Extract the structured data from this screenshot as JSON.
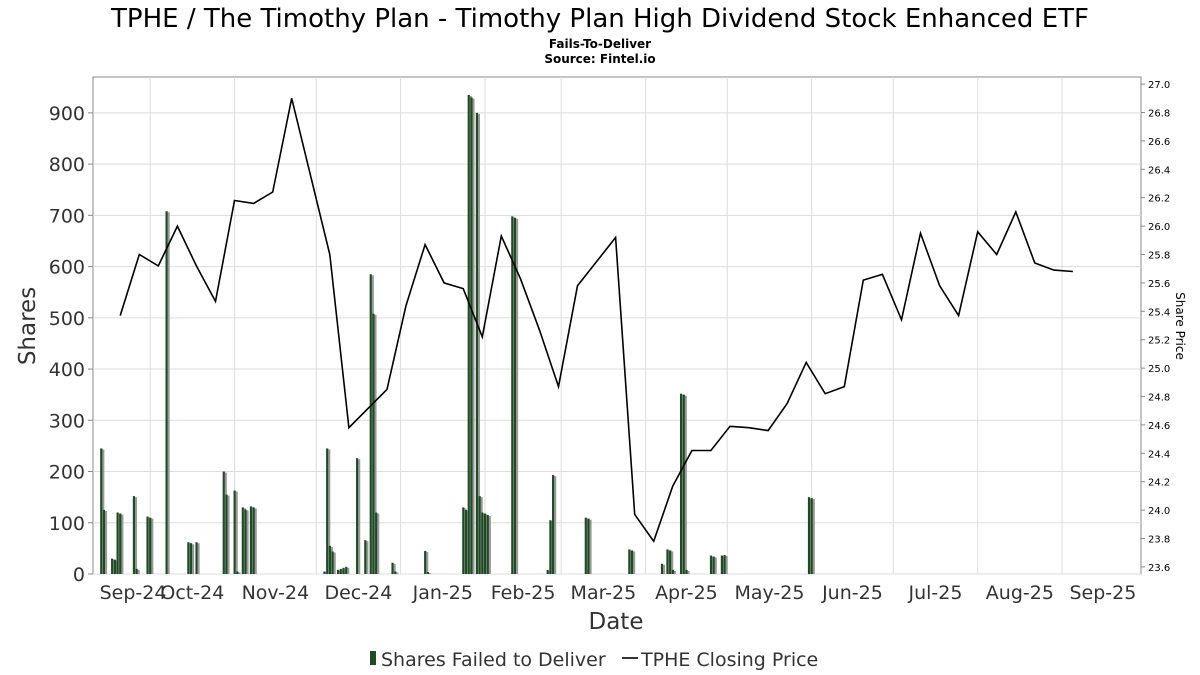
{
  "chart_data": {
    "type": "bar",
    "title": "TPHE / The Timothy Plan - Timothy Plan High Dividend Stock Enhanced ETF",
    "subtitle": "Fails-To-Deliver",
    "source": "Source: Fintel.io",
    "xlabel": "Date",
    "ylabel": "Shares",
    "ylabel_right": "Share Price",
    "ylim": [
      0,
      970
    ],
    "ylim_right": [
      23.55,
      27.05
    ],
    "xlim": [
      "2024-09-10",
      "2025-09-30"
    ],
    "yticks": [
      0,
      100,
      200,
      300,
      400,
      500,
      600,
      700,
      800,
      900
    ],
    "yticks_right": [
      "23.6",
      "23.8",
      "24.0",
      "24.2",
      "24.4",
      "24.6",
      "24.8",
      "25.0",
      "25.2",
      "25.4",
      "25.6",
      "25.8",
      "26.0",
      "26.2",
      "26.4",
      "26.6",
      "26.8",
      "27.0"
    ],
    "xticks": [
      {
        "date": "2024-09-01",
        "label": "Sep-24"
      },
      {
        "date": "2024-10-01",
        "label": "Oct-24"
      },
      {
        "date": "2024-11-01",
        "label": "Nov-24"
      },
      {
        "date": "2024-12-01",
        "label": "Dec-24"
      },
      {
        "date": "2025-01-01",
        "label": "Jan-25"
      },
      {
        "date": "2025-02-01",
        "label": "Feb-25"
      },
      {
        "date": "2025-03-01",
        "label": "Mar-25"
      },
      {
        "date": "2025-04-01",
        "label": "Apr-25"
      },
      {
        "date": "2025-05-01",
        "label": "May-25"
      },
      {
        "date": "2025-06-01",
        "label": "Jun-25"
      },
      {
        "date": "2025-07-01",
        "label": "Jul-25"
      },
      {
        "date": "2025-08-01",
        "label": "Aug-25"
      },
      {
        "date": "2025-09-01",
        "label": "Sep-25"
      }
    ],
    "grid": true,
    "legend_placement": "bottom",
    "colors": {
      "bars": "#1e4a24",
      "bar_shadow": "#999999",
      "line": "#000000",
      "grid": "#dddddd"
    },
    "series": [
      {
        "name": "Shares Failed to Deliver",
        "type": "bar",
        "points": [
          {
            "x": "2024-09-13",
            "y": 245
          },
          {
            "x": "2024-09-14",
            "y": 125
          },
          {
            "x": "2024-09-17",
            "y": 30
          },
          {
            "x": "2024-09-18",
            "y": 28
          },
          {
            "x": "2024-09-19",
            "y": 120
          },
          {
            "x": "2024-09-20",
            "y": 118
          },
          {
            "x": "2024-09-25",
            "y": 152
          },
          {
            "x": "2024-09-26",
            "y": 10
          },
          {
            "x": "2024-09-30",
            "y": 112
          },
          {
            "x": "2024-10-01",
            "y": 110
          },
          {
            "x": "2024-10-07",
            "y": 708
          },
          {
            "x": "2024-10-15",
            "y": 62
          },
          {
            "x": "2024-10-16",
            "y": 60
          },
          {
            "x": "2024-10-18",
            "y": 62
          },
          {
            "x": "2024-10-28",
            "y": 200
          },
          {
            "x": "2024-10-29",
            "y": 155
          },
          {
            "x": "2024-11-01",
            "y": 163
          },
          {
            "x": "2024-11-02",
            "y": 5
          },
          {
            "x": "2024-11-04",
            "y": 130
          },
          {
            "x": "2024-11-05",
            "y": 126
          },
          {
            "x": "2024-11-07",
            "y": 132
          },
          {
            "x": "2024-11-08",
            "y": 130
          },
          {
            "x": "2024-12-04",
            "y": 5
          },
          {
            "x": "2024-12-05",
            "y": 245
          },
          {
            "x": "2024-12-06",
            "y": 55
          },
          {
            "x": "2024-12-07",
            "y": 44
          },
          {
            "x": "2024-12-09",
            "y": 8
          },
          {
            "x": "2024-12-10",
            "y": 10
          },
          {
            "x": "2024-12-11",
            "y": 12
          },
          {
            "x": "2024-12-12",
            "y": 14
          },
          {
            "x": "2024-12-16",
            "y": 226
          },
          {
            "x": "2024-12-19",
            "y": 66
          },
          {
            "x": "2024-12-21",
            "y": 585
          },
          {
            "x": "2024-12-22",
            "y": 508
          },
          {
            "x": "2024-12-23",
            "y": 120
          },
          {
            "x": "2024-12-29",
            "y": 22
          },
          {
            "x": "2024-12-30",
            "y": 5
          },
          {
            "x": "2025-01-10",
            "y": 45
          },
          {
            "x": "2025-01-11",
            "y": 4
          },
          {
            "x": "2025-01-24",
            "y": 130
          },
          {
            "x": "2025-01-25",
            "y": 125
          },
          {
            "x": "2025-01-26",
            "y": 935
          },
          {
            "x": "2025-01-27",
            "y": 930
          },
          {
            "x": "2025-01-29",
            "y": 900
          },
          {
            "x": "2025-01-30",
            "y": 152
          },
          {
            "x": "2025-01-31",
            "y": 120
          },
          {
            "x": "2025-02-01",
            "y": 118
          },
          {
            "x": "2025-02-02",
            "y": 115
          },
          {
            "x": "2025-02-11",
            "y": 698
          },
          {
            "x": "2025-02-12",
            "y": 695
          },
          {
            "x": "2025-02-24",
            "y": 8
          },
          {
            "x": "2025-02-25",
            "y": 105
          },
          {
            "x": "2025-02-26",
            "y": 193
          },
          {
            "x": "2025-03-10",
            "y": 110
          },
          {
            "x": "2025-03-11",
            "y": 108
          },
          {
            "x": "2025-03-26",
            "y": 48
          },
          {
            "x": "2025-03-27",
            "y": 46
          },
          {
            "x": "2025-04-07",
            "y": 20
          },
          {
            "x": "2025-04-09",
            "y": 48
          },
          {
            "x": "2025-04-10",
            "y": 46
          },
          {
            "x": "2025-04-11",
            "y": 8
          },
          {
            "x": "2025-04-14",
            "y": 352
          },
          {
            "x": "2025-04-15",
            "y": 350
          },
          {
            "x": "2025-04-16",
            "y": 8
          },
          {
            "x": "2025-04-25",
            "y": 36
          },
          {
            "x": "2025-04-26",
            "y": 34
          },
          {
            "x": "2025-04-29",
            "y": 36
          },
          {
            "x": "2025-04-30",
            "y": 37
          },
          {
            "x": "2025-05-31",
            "y": 150
          },
          {
            "x": "2025-06-01",
            "y": 148
          }
        ]
      },
      {
        "name": "TPHE Closing Price",
        "type": "line",
        "points": [
          {
            "x": "2024-09-20",
            "y": 25.37
          },
          {
            "x": "2024-09-27",
            "y": 25.8
          },
          {
            "x": "2024-10-04",
            "y": 25.72
          },
          {
            "x": "2024-10-11",
            "y": 26.0
          },
          {
            "x": "2024-10-18",
            "y": 25.72
          },
          {
            "x": "2024-10-25",
            "y": 25.47
          },
          {
            "x": "2024-11-01",
            "y": 26.18
          },
          {
            "x": "2024-11-08",
            "y": 26.16
          },
          {
            "x": "2024-11-15",
            "y": 26.24
          },
          {
            "x": "2024-11-22",
            "y": 26.9
          },
          {
            "x": "2024-12-06",
            "y": 25.8
          },
          {
            "x": "2024-12-13",
            "y": 24.58
          },
          {
            "x": "2024-12-27",
            "y": 24.85
          },
          {
            "x": "2025-01-03",
            "y": 25.44
          },
          {
            "x": "2025-01-10",
            "y": 25.87
          },
          {
            "x": "2025-01-17",
            "y": 25.6
          },
          {
            "x": "2025-01-24",
            "y": 25.56
          },
          {
            "x": "2025-01-31",
            "y": 25.22
          },
          {
            "x": "2025-02-07",
            "y": 25.93
          },
          {
            "x": "2025-02-14",
            "y": 25.63
          },
          {
            "x": "2025-02-21",
            "y": 25.27
          },
          {
            "x": "2025-02-28",
            "y": 24.87
          },
          {
            "x": "2025-03-07",
            "y": 25.58
          },
          {
            "x": "2025-03-21",
            "y": 25.92
          },
          {
            "x": "2025-03-28",
            "y": 23.97
          },
          {
            "x": "2025-04-04",
            "y": 23.78
          },
          {
            "x": "2025-04-11",
            "y": 24.17
          },
          {
            "x": "2025-04-18",
            "y": 24.42
          },
          {
            "x": "2025-04-25",
            "y": 24.42
          },
          {
            "x": "2025-05-02",
            "y": 24.59
          },
          {
            "x": "2025-05-09",
            "y": 24.58
          },
          {
            "x": "2025-05-16",
            "y": 24.56
          },
          {
            "x": "2025-05-23",
            "y": 24.75
          },
          {
            "x": "2025-05-30",
            "y": 25.04
          },
          {
            "x": "2025-06-06",
            "y": 24.82
          },
          {
            "x": "2025-06-13",
            "y": 24.87
          },
          {
            "x": "2025-06-20",
            "y": 25.62
          },
          {
            "x": "2025-06-27",
            "y": 25.66
          },
          {
            "x": "2025-07-04",
            "y": 25.34
          },
          {
            "x": "2025-07-11",
            "y": 25.95
          },
          {
            "x": "2025-07-18",
            "y": 25.58
          },
          {
            "x": "2025-07-25",
            "y": 25.37
          },
          {
            "x": "2025-08-01",
            "y": 25.96
          },
          {
            "x": "2025-08-08",
            "y": 25.8
          },
          {
            "x": "2025-08-15",
            "y": 26.1
          },
          {
            "x": "2025-08-22",
            "y": 25.74
          },
          {
            "x": "2025-08-29",
            "y": 25.69
          },
          {
            "x": "2025-09-05",
            "y": 25.68
          }
        ]
      }
    ]
  }
}
